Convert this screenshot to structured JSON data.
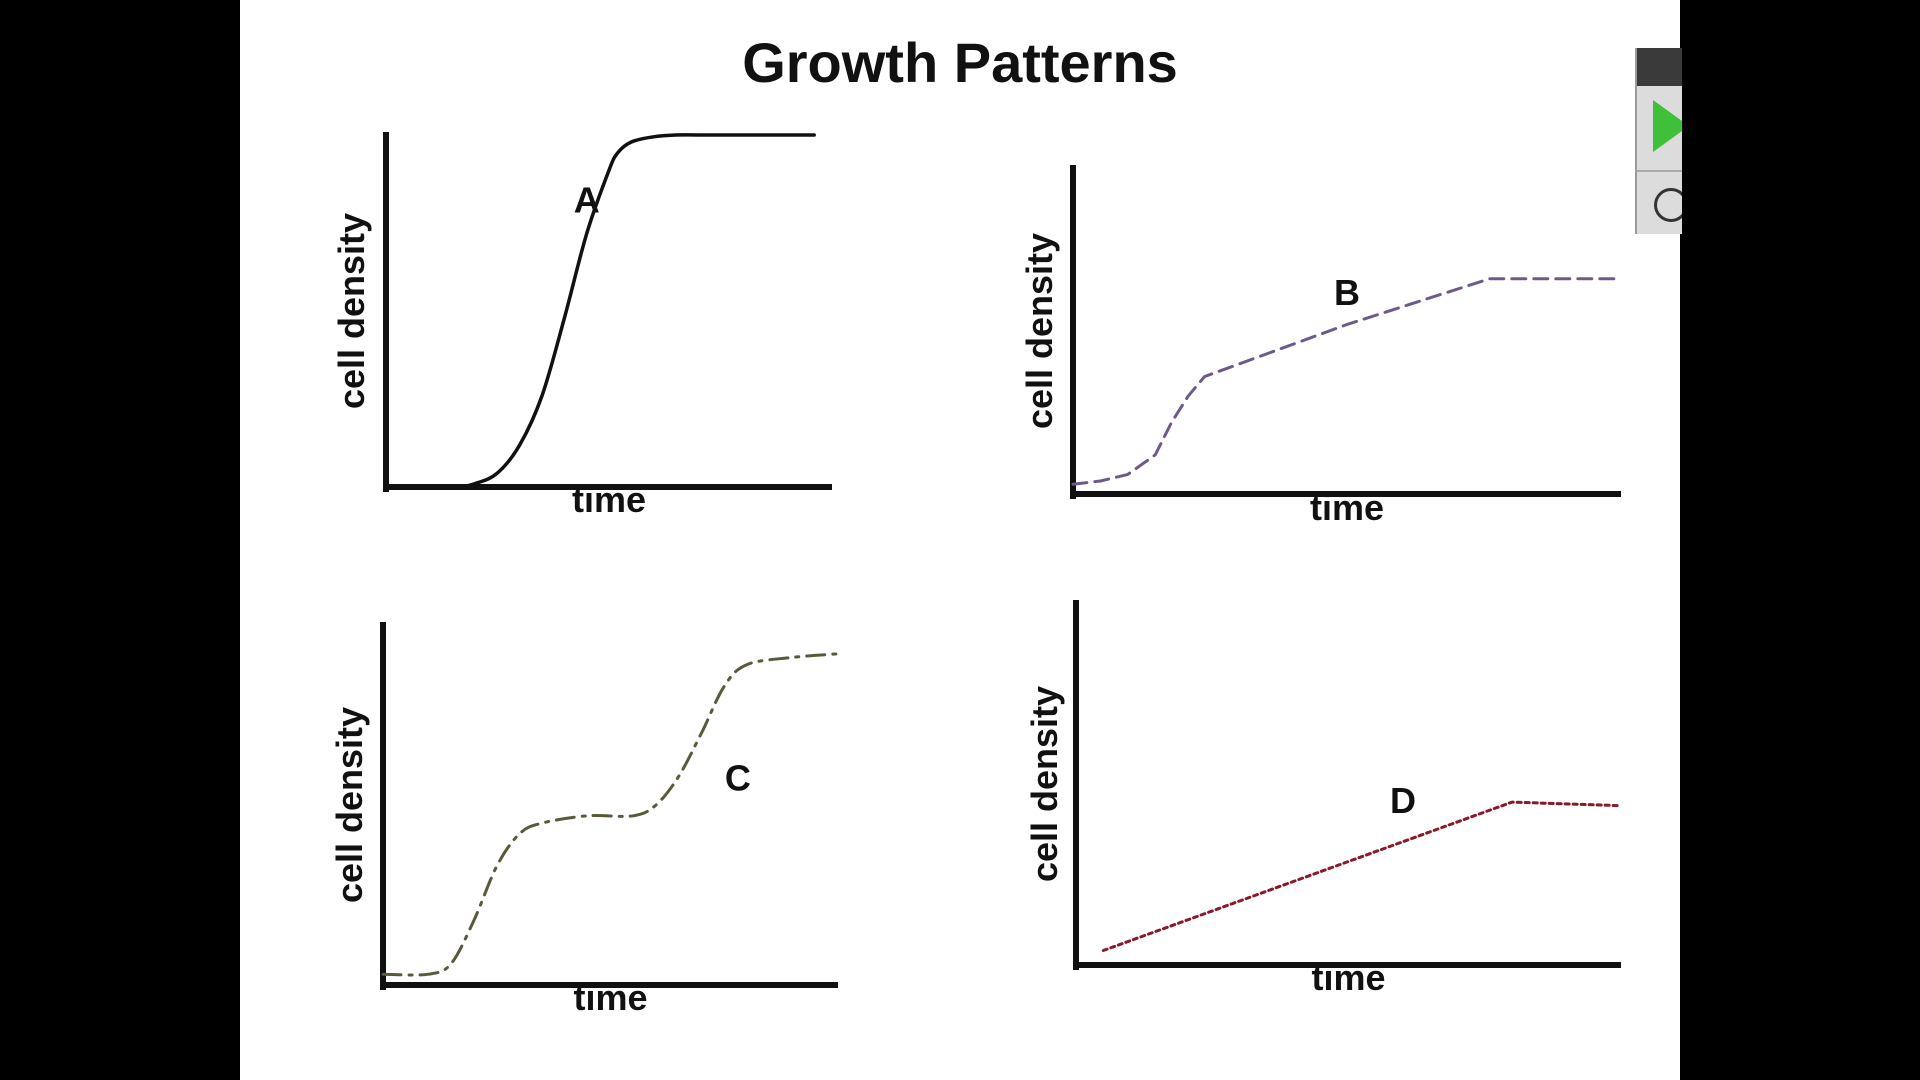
{
  "slide": {
    "title": "Growth Patterns"
  },
  "colors": {
    "background": "#000000",
    "slide": "#ffffff",
    "axis": "#111111",
    "curve_a": "#111111",
    "curve_b": "#6e5a8a",
    "curve_c": "#5a5a3a",
    "curve_d": "#8a1a2a",
    "play_icon": "#3fbf3a"
  },
  "player": {
    "play_icon": "play-icon",
    "second_icon": "circle-icon"
  },
  "chart_data": [
    {
      "type": "line",
      "panel": "top-left",
      "xlabel": "time",
      "ylabel": "cell density",
      "xlim": [
        0,
        100
      ],
      "ylim": [
        0,
        100
      ],
      "series": [
        {
          "name": "A",
          "line_style": "solid",
          "x": [
            0,
            15,
            20,
            25,
            30,
            35,
            40,
            45,
            50,
            52,
            55,
            60,
            65,
            70,
            80,
            90,
            96
          ],
          "y": [
            0,
            0,
            1,
            4,
            12,
            26,
            48,
            72,
            90,
            95,
            98,
            99.5,
            100,
            100,
            100,
            100,
            100
          ]
        }
      ],
      "annotations": [
        {
          "text": "A",
          "x": 45,
          "y": 78
        }
      ]
    },
    {
      "type": "line",
      "panel": "top-right",
      "xlabel": "time",
      "ylabel": "cell density",
      "xlim": [
        0,
        100
      ],
      "ylim": [
        0,
        100
      ],
      "series": [
        {
          "name": "B",
          "line_style": "dashed",
          "x": [
            0,
            5,
            10,
            15,
            18,
            21,
            24,
            50,
            76,
            100
          ],
          "y": [
            3,
            4,
            6,
            12,
            22,
            30,
            36,
            52,
            66,
            66
          ]
        }
      ],
      "annotations": [
        {
          "text": "B",
          "x": 50,
          "y": 58
        }
      ]
    },
    {
      "type": "line",
      "panel": "bottom-left",
      "xlabel": "time",
      "ylabel": "cell density",
      "xlim": [
        0,
        100
      ],
      "ylim": [
        0,
        100
      ],
      "series": [
        {
          "name": "C",
          "line_style": "dash-dot",
          "x": [
            0,
            10,
            15,
            20,
            25,
            30,
            35,
            45,
            55,
            60,
            65,
            70,
            75,
            80,
            90,
            100
          ],
          "y": [
            3,
            3,
            6,
            18,
            33,
            42,
            45,
            47,
            47,
            50,
            58,
            70,
            83,
            89,
            91,
            92
          ]
        }
      ],
      "annotations": [
        {
          "text": "C",
          "x": 78,
          "y": 54
        }
      ]
    },
    {
      "type": "line",
      "panel": "bottom-right",
      "xlabel": "time",
      "ylabel": "cell density",
      "xlim": [
        0,
        100
      ],
      "ylim": [
        0,
        100
      ],
      "series": [
        {
          "name": "D",
          "line_style": "dotted",
          "x": [
            5,
            80,
            100
          ],
          "y": [
            4,
            45,
            44
          ]
        }
      ],
      "annotations": [
        {
          "text": "D",
          "x": 60,
          "y": 42
        }
      ]
    }
  ]
}
